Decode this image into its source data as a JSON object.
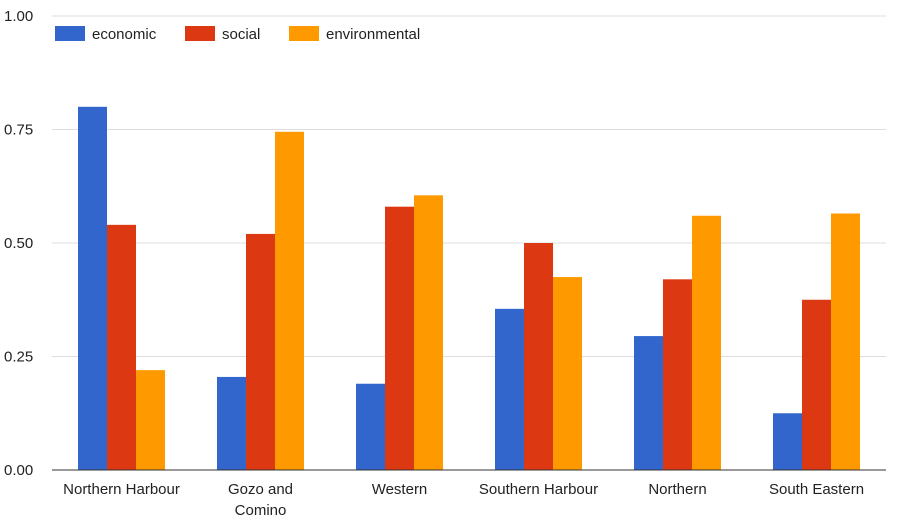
{
  "chart_data": {
    "type": "bar",
    "categories": [
      [
        "Northern Harbour"
      ],
      [
        "Gozo and",
        "Comino"
      ],
      [
        "Western"
      ],
      [
        "Southern Harbour"
      ],
      [
        "Northern"
      ],
      [
        "South Eastern"
      ]
    ],
    "series": [
      {
        "name": "economic",
        "color": "#3366cc",
        "values": [
          0.8,
          0.205,
          0.19,
          0.355,
          0.295,
          0.125
        ]
      },
      {
        "name": "social",
        "color": "#dc3912",
        "values": [
          0.54,
          0.52,
          0.58,
          0.5,
          0.42,
          0.375
        ]
      },
      {
        "name": "environmental",
        "color": "#ff9900",
        "values": [
          0.22,
          0.745,
          0.605,
          0.425,
          0.56,
          0.565
        ]
      }
    ],
    "yticks": [
      "0.00",
      "0.25",
      "0.50",
      "0.75",
      "1.00"
    ],
    "ylim": [
      0,
      1
    ],
    "grid": true,
    "legend_position": "top-left"
  }
}
